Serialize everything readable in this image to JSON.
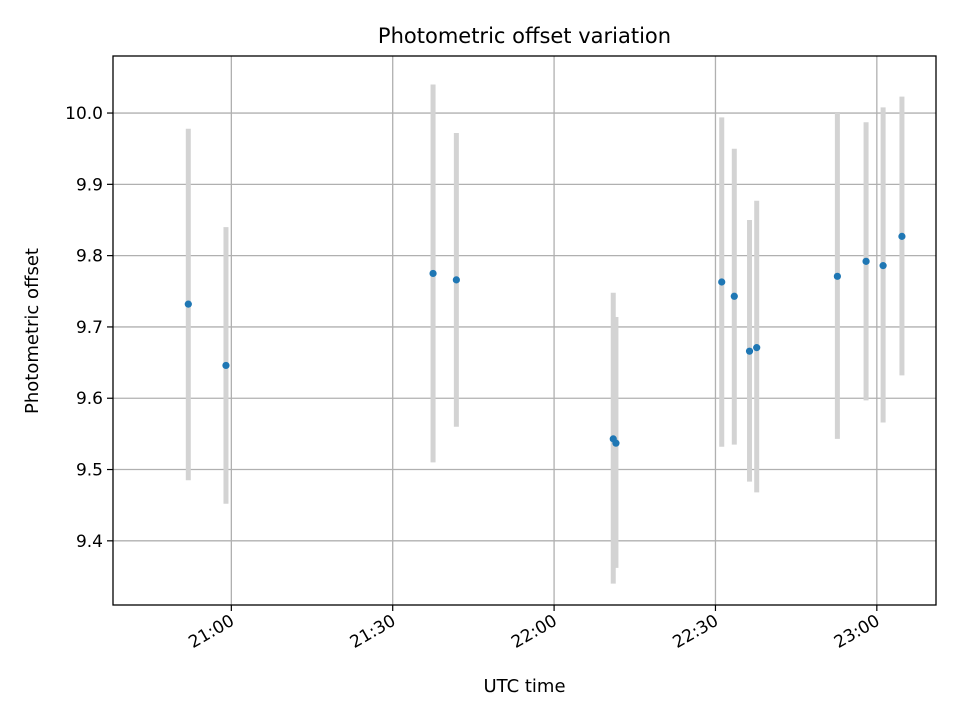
{
  "chart_data": {
    "type": "scatter",
    "title": "Photometric offset variation",
    "xlabel": "UTC time",
    "ylabel": "Photometric offset",
    "x_axis_type": "time",
    "xlim": [
      "20:38",
      "23:11"
    ],
    "ylim": [
      9.31,
      10.08
    ],
    "x_ticks": [
      "21:00",
      "21:30",
      "22:00",
      "22:30",
      "23:00"
    ],
    "y_ticks": [
      9.4,
      9.5,
      9.6,
      9.7,
      9.8,
      9.9,
      10.0
    ],
    "y_tick_labels": [
      "9.4",
      "9.5",
      "9.6",
      "9.7",
      "9.8",
      "9.9",
      "10.0"
    ],
    "x_tick_rotation": "30deg",
    "grid": true,
    "point_color": "#1f77b4",
    "errorbar_color": "#d3d3d3",
    "series": [
      {
        "points": [
          {
            "x": "20:52:00",
            "y": 9.732,
            "ylow": 9.485,
            "yhigh": 9.978
          },
          {
            "x": "20:59:00",
            "y": 9.646,
            "ylow": 9.452,
            "yhigh": 9.84
          },
          {
            "x": "21:37:30",
            "y": 9.775,
            "ylow": 9.51,
            "yhigh": 10.04
          },
          {
            "x": "21:41:50",
            "y": 9.766,
            "ylow": 9.56,
            "yhigh": 9.972
          },
          {
            "x": "22:11:00",
            "y": 9.543,
            "ylow": 9.34,
            "yhigh": 9.748
          },
          {
            "x": "22:11:30",
            "y": 9.537,
            "ylow": 9.362,
            "yhigh": 9.714
          },
          {
            "x": "22:31:10",
            "y": 9.763,
            "ylow": 9.532,
            "yhigh": 9.994
          },
          {
            "x": "22:33:30",
            "y": 9.743,
            "ylow": 9.535,
            "yhigh": 9.95
          },
          {
            "x": "22:36:20",
            "y": 9.666,
            "ylow": 9.483,
            "yhigh": 9.85
          },
          {
            "x": "22:37:40",
            "y": 9.671,
            "ylow": 9.468,
            "yhigh": 9.877
          },
          {
            "x": "22:52:40",
            "y": 9.771,
            "ylow": 9.543,
            "yhigh": 10.0
          },
          {
            "x": "22:58:00",
            "y": 9.792,
            "ylow": 9.597,
            "yhigh": 9.987
          },
          {
            "x": "23:01:10",
            "y": 9.786,
            "ylow": 9.566,
            "yhigh": 10.008
          },
          {
            "x": "23:04:40",
            "y": 9.827,
            "ylow": 9.632,
            "yhigh": 10.023
          }
        ]
      }
    ]
  }
}
